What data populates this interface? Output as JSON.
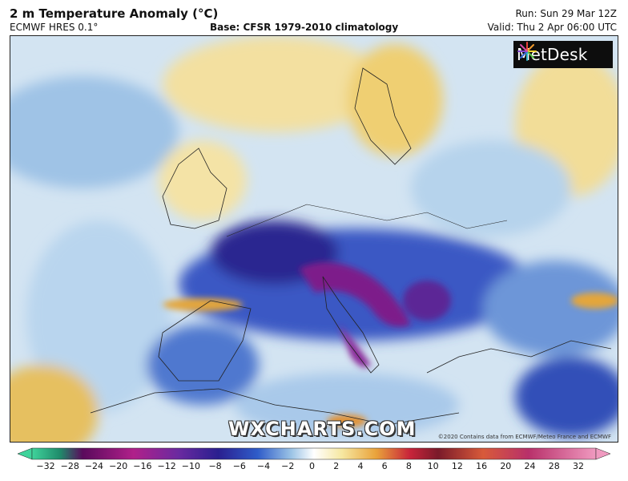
{
  "header": {
    "title": "2 m Temperature Anomaly (°C)",
    "model": "ECMWF HRES 0.1°",
    "base": "Base: CFSR 1979-2010 climatology",
    "run": "Run: Sun 29 Mar 12Z",
    "valid": "Valid: Thu 2 Apr 06:00 UTC"
  },
  "map": {
    "logo_text": "MetDesk",
    "logo_icon": "metdesk-starburst-icon",
    "watermark": "WXCHARTS.COM",
    "copyright": "©2020 Contains data from ECMWF/Meteo France and ECMWF"
  },
  "colorbar": {
    "ticks": [
      "-32",
      "-28",
      "-24",
      "-20",
      "-16",
      "-12",
      "-10",
      "-8",
      "-6",
      "-4",
      "-2",
      "0",
      "2",
      "4",
      "6",
      "8",
      "10",
      "12",
      "16",
      "20",
      "24",
      "28",
      "32"
    ],
    "colors": {
      "min_arrow": "#3fd39b",
      "deep_purple": "#5a0a5c",
      "magenta": "#b0208a",
      "dark_blue": "#2a1f8f",
      "blue": "#2f5cc9",
      "light_blue": "#9cc4e6",
      "white": "#ffffff",
      "light_yellow": "#f6e7a0",
      "orange": "#e9a33b",
      "red": "#c8243a",
      "dark_red": "#7a1a2a",
      "max_arrow": "#f09ac0"
    }
  }
}
